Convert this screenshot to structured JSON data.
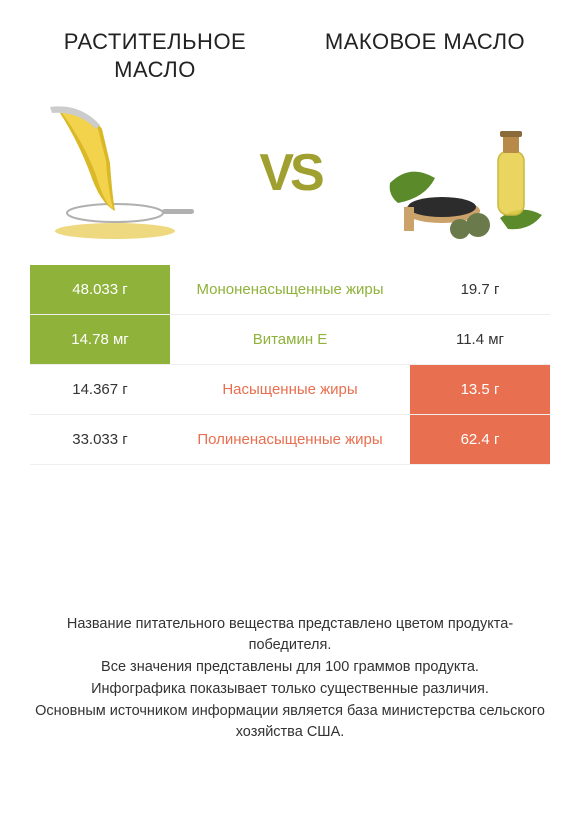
{
  "products": {
    "left": {
      "title": "РАСТИТЕЛЬНОЕ МАСЛО"
    },
    "right": {
      "title": "МАКОВОЕ МАСЛО"
    }
  },
  "vs_label": "VS",
  "colors": {
    "left_win": "#8fb23a",
    "right_win": "#e86f4f",
    "left_lose": "#ffffff",
    "right_lose": "#ffffff",
    "left_lose_text": "#333333",
    "right_lose_text": "#333333",
    "mid_left_color": "#8fb23a",
    "mid_right_color": "#e86f4f",
    "vs_color": "#a0a030"
  },
  "table": {
    "rows": [
      {
        "left": "48.033 г",
        "mid": "Мононенасыщенные жиры",
        "right": "19.7 г",
        "winner": "left"
      },
      {
        "left": "14.78 мг",
        "mid": "Витамин E",
        "right": "11.4 мг",
        "winner": "left"
      },
      {
        "left": "14.367 г",
        "mid": "Насыщенные жиры",
        "right": "13.5 г",
        "winner": "right"
      },
      {
        "left": "33.033 г",
        "mid": "Полиненасыщенные жиры",
        "right": "62.4 г",
        "winner": "right"
      }
    ]
  },
  "footer": {
    "lines": [
      "Название питательного вещества представлено цветом продукта-победителя.",
      "Все значения представлены для 100 граммов продукта.",
      "Инфографика показывает только существенные различия.",
      "Основным источником информации является база министерства сельского хозяйства США."
    ]
  }
}
